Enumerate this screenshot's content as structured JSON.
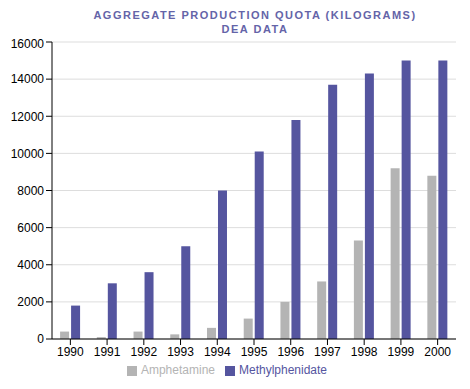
{
  "chart_data": {
    "type": "bar",
    "title": "AGGREGATE PRODUCTION QUOTA (KILOGRAMS)",
    "subtitle": "DEA DATA",
    "categories": [
      "1990",
      "1991",
      "1992",
      "1993",
      "1994",
      "1995",
      "1996",
      "1997",
      "1998",
      "1999",
      "2000"
    ],
    "series": [
      {
        "name": "Amphetamine",
        "color": "#b4b4b4",
        "values": [
          400,
          100,
          400,
          250,
          600,
          1100,
          2000,
          3100,
          5300,
          9200,
          8800
        ]
      },
      {
        "name": "Methylphenidate",
        "color": "#55559f",
        "values": [
          1800,
          3000,
          3600,
          5000,
          8000,
          10100,
          11800,
          13700,
          14300,
          15000,
          15000
        ]
      }
    ],
    "ylim": [
      0,
      16000
    ],
    "yticks": [
      0,
      2000,
      4000,
      6000,
      8000,
      10000,
      12000,
      14000,
      16000
    ],
    "grid": true,
    "legend": "bottom"
  }
}
